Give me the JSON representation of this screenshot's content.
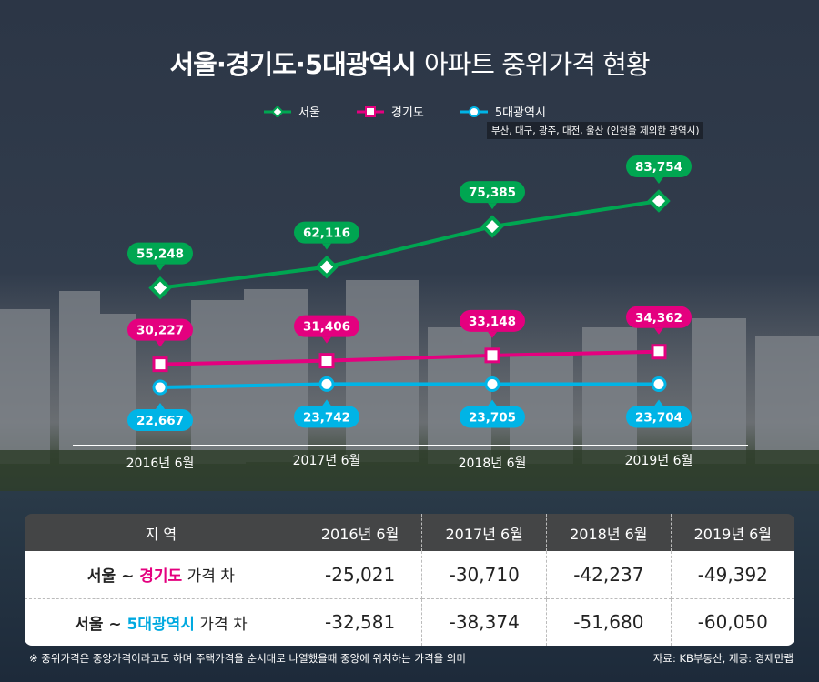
{
  "title": {
    "bold": "서울·경기도·5대광역시",
    "light": "아파트 중위가격 현황"
  },
  "legend": [
    {
      "label": "서울",
      "color": "#00a651"
    },
    {
      "label": "경기도",
      "color": "#e4007f"
    },
    {
      "label": "5대광역시",
      "color": "#00b4e6"
    }
  ],
  "legend_note": "부산, 대구, 광주, 대전, 울산 (인천을 제외한 광역시)",
  "chart_data": {
    "type": "line",
    "title": "서울·경기도·5대광역시 아파트 중위가격 현황",
    "categories": [
      "2016년 6월",
      "2017년 6월",
      "2018년 6월",
      "2019년 6월"
    ],
    "series": [
      {
        "name": "서울",
        "values": [
          55248,
          62116,
          75385,
          83754
        ],
        "labels": [
          "55,248",
          "62,116",
          "75,385",
          "83,754"
        ],
        "color": "#00a651"
      },
      {
        "name": "경기도",
        "values": [
          30227,
          31406,
          33148,
          34362
        ],
        "labels": [
          "30,227",
          "31,406",
          "33,148",
          "34,362"
        ],
        "color": "#e4007f"
      },
      {
        "name": "5대광역시",
        "values": [
          22667,
          23742,
          23705,
          23704
        ],
        "labels": [
          "22,667",
          "23,742",
          "23,705",
          "23,704"
        ],
        "color": "#00b4e6"
      }
    ],
    "xlabel": "",
    "ylabel": "",
    "legend_position": "top",
    "grid": false
  },
  "table": {
    "headers": [
      "지 역",
      "2016년 6월",
      "2017년 6월",
      "2018년 6월",
      "2019년 6월"
    ],
    "rows": [
      {
        "pre": "서울 ~ ",
        "hl": "경기도",
        "post": " 가격 차",
        "values": [
          "-25,021",
          "-30,710",
          "-42,237",
          "-49,392"
        ]
      },
      {
        "pre": "서울 ~ ",
        "hl": "5대광역시",
        "post": " 가격 차",
        "values": [
          "-32,581",
          "-38,374",
          "-51,680",
          "-60,050"
        ]
      }
    ]
  },
  "footnote": "※ 중위가격은 중앙가격이라고도 하며 주택가격을 순서대로 나열했을때 중앙에 위치하는 가격을 의미",
  "source": "자료: KB부동산, 제공: 경제만랩"
}
